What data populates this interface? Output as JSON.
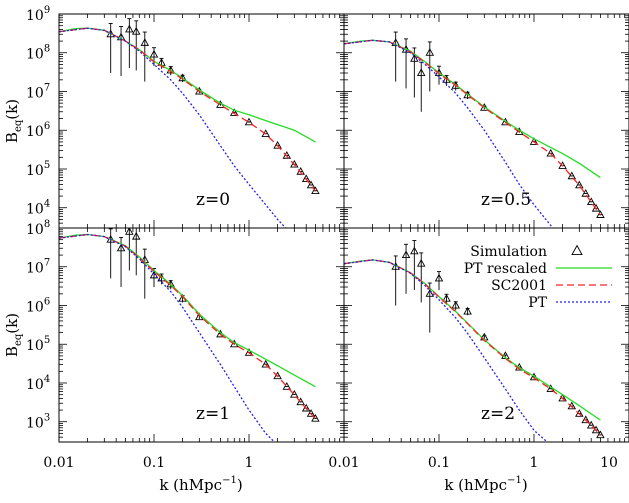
{
  "figure": {
    "xlabel_main": "k (hMpc",
    "xlabel_exp": "−1",
    "xlabel_close": ")",
    "ylabel_main": "B",
    "ylabel_sub": "eq",
    "ylabel_arg": "(k)",
    "x_tick_labels": [
      "0.01",
      "0.1",
      "1",
      "0.01",
      "0.1",
      "1",
      "10"
    ],
    "legend": [
      {
        "label": "Simulation",
        "marker": "triangle",
        "color": "#000000"
      },
      {
        "label": "PT rescaled",
        "style": "solid",
        "color": "#22dd22"
      },
      {
        "label": "SC2001",
        "style": "dashed",
        "color": "#ff2020"
      },
      {
        "label": "PT",
        "style": "dotted",
        "color": "#2222ee"
      }
    ]
  },
  "chart_data": [
    {
      "type": "scatter",
      "panel": "top-left",
      "annotation": "z=0",
      "xscale": "log",
      "yscale": "log",
      "xlim": [
        0.01,
        10
      ],
      "ylim": [
        3000,
        1000000000
      ],
      "y_tick_exponents": [
        4,
        5,
        6,
        7,
        8,
        9
      ],
      "series": [
        {
          "name": "Simulation",
          "kind": "points",
          "x": [
            0.035,
            0.045,
            0.055,
            0.065,
            0.08,
            0.1,
            0.12,
            0.15,
            0.2,
            0.3,
            0.5,
            0.7,
            1.0,
            1.5,
            2.0,
            2.5,
            3.0,
            3.5,
            4.0,
            4.5,
            5.0
          ],
          "y": [
            300000000,
            250000000,
            400000000,
            350000000,
            180000000,
            90000000,
            55000000,
            35000000,
            22000000,
            10000000,
            4500000,
            2800000,
            1600000,
            800000,
            400000,
            220000,
            130000,
            85000,
            55000,
            38000,
            27000
          ],
          "err": [
            0.9,
            0.9,
            0.9,
            0.9,
            0.9,
            0.5,
            0.3,
            0.25,
            0.2,
            0.1,
            0.05,
            0.04,
            0.03,
            0.02,
            0.02,
            0.02,
            0.02,
            0.02,
            0.02,
            0.02,
            0.02
          ]
        },
        {
          "name": "PT rescaled",
          "kind": "line",
          "x": [
            0.01,
            0.015,
            0.02,
            0.03,
            0.05,
            0.07,
            0.1,
            0.15,
            0.2,
            0.3,
            0.5,
            0.7,
            1.0,
            2.0,
            3.0,
            5.0
          ],
          "y": [
            350000000,
            420000000,
            430000000,
            380000000,
            200000000,
            120000000,
            60000000,
            35000000,
            22000000,
            11000000,
            5000000,
            3300000,
            2500000,
            1400000,
            1000000,
            500000
          ]
        },
        {
          "name": "SC2001",
          "kind": "line",
          "x": [
            0.01,
            0.02,
            0.03,
            0.05,
            0.07,
            0.1,
            0.15,
            0.2,
            0.3,
            0.5,
            0.7,
            1.0,
            1.5,
            2.0,
            3.0,
            4.0,
            5.0
          ],
          "y": [
            350000000,
            430000000,
            380000000,
            200000000,
            120000000,
            58000000,
            33000000,
            21000000,
            10000000,
            4500000,
            2700000,
            1600000,
            800000,
            400000,
            130000,
            55000,
            27000
          ]
        },
        {
          "name": "PT",
          "kind": "line",
          "x": [
            0.01,
            0.02,
            0.03,
            0.05,
            0.07,
            0.1,
            0.15,
            0.2,
            0.3,
            0.5,
            0.7,
            1.0,
            1.5,
            2.0,
            2.5
          ],
          "y": [
            350000000,
            430000000,
            380000000,
            200000000,
            110000000,
            50000000,
            20000000,
            9000000,
            2500000,
            400000,
            120000,
            40000,
            12000,
            5000,
            2800
          ]
        }
      ]
    },
    {
      "type": "scatter",
      "panel": "top-right",
      "annotation": "z=0.5",
      "xscale": "log",
      "yscale": "log",
      "xlim": [
        0.01,
        10
      ],
      "ylim": [
        3000,
        1000000000
      ],
      "y_tick_exponents": [
        4,
        5,
        6,
        7,
        8,
        9
      ],
      "series": [
        {
          "name": "Simulation",
          "kind": "points",
          "x": [
            0.035,
            0.045,
            0.055,
            0.065,
            0.08,
            0.1,
            0.12,
            0.15,
            0.2,
            0.3,
            0.5,
            0.7,
            1.0,
            1.5,
            2.0,
            2.5,
            3.0,
            3.5,
            4.0,
            4.5,
            5.0
          ],
          "y": [
            180000000,
            120000000,
            70000000,
            30000000,
            100000000,
            30000000,
            20000000,
            14000000,
            8000000,
            3800000,
            1600000,
            900000,
            500000,
            250000,
            120000,
            65000,
            38000,
            23000,
            14000,
            9500,
            6500
          ],
          "err": [
            0.9,
            0.9,
            0.9,
            0.9,
            0.9,
            0.5,
            0.3,
            0.25,
            0.2,
            0.1,
            0.05,
            0.04,
            0.03,
            0.02,
            0.02,
            0.02,
            0.02,
            0.02,
            0.02,
            0.02,
            0.02
          ]
        },
        {
          "name": "PT rescaled",
          "kind": "line",
          "x": [
            0.01,
            0.015,
            0.02,
            0.03,
            0.05,
            0.07,
            0.1,
            0.15,
            0.2,
            0.3,
            0.5,
            0.7,
            1.0,
            2.0,
            3.0,
            5.0
          ],
          "y": [
            170000000,
            200000000,
            210000000,
            190000000,
            110000000,
            60000000,
            30000000,
            15000000,
            8500000,
            4000000,
            1700000,
            1000000,
            600000,
            250000,
            140000,
            60000
          ]
        },
        {
          "name": "SC2001",
          "kind": "line",
          "x": [
            0.01,
            0.02,
            0.03,
            0.05,
            0.07,
            0.1,
            0.15,
            0.2,
            0.3,
            0.5,
            0.7,
            1.0,
            1.5,
            2.0,
            3.0,
            4.0,
            5.0
          ],
          "y": [
            170000000,
            210000000,
            190000000,
            105000000,
            58000000,
            29000000,
            14500000,
            8200000,
            3800000,
            1600000,
            900000,
            500000,
            250000,
            120000,
            38000,
            14000,
            6500
          ]
        },
        {
          "name": "PT",
          "kind": "line",
          "x": [
            0.01,
            0.02,
            0.03,
            0.05,
            0.07,
            0.1,
            0.15,
            0.2,
            0.3,
            0.5,
            0.7,
            1.0,
            1.5,
            2.0
          ],
          "y": [
            170000000,
            210000000,
            190000000,
            100000000,
            52000000,
            24000000,
            9000000,
            3800000,
            1000000,
            150000,
            40000,
            12000,
            3500,
            1500
          ]
        }
      ]
    },
    {
      "type": "scatter",
      "panel": "bottom-left",
      "annotation": "z=1",
      "xscale": "log",
      "yscale": "log",
      "xlim": [
        0.01,
        10
      ],
      "ylim": [
        300,
        100000000
      ],
      "y_tick_exponents": [
        3,
        4,
        5,
        6,
        7,
        8
      ],
      "series": [
        {
          "name": "Simulation",
          "kind": "points",
          "x": [
            0.035,
            0.045,
            0.055,
            0.065,
            0.08,
            0.1,
            0.12,
            0.15,
            0.2,
            0.3,
            0.5,
            0.7,
            1.0,
            1.5,
            2.0,
            2.5,
            3.0,
            3.5,
            4.0,
            4.5,
            5.0
          ],
          "y": [
            50000000,
            30000000,
            80000000,
            60000000,
            15000000,
            6000000,
            5000000,
            3500000,
            1500000,
            500000,
            180000,
            100000,
            60000,
            30000,
            15000,
            8000,
            5000,
            3200,
            2200,
            1600,
            1200
          ],
          "err": [
            0.9,
            0.9,
            0.9,
            0.9,
            0.9,
            0.5,
            0.3,
            0.25,
            0.2,
            0.1,
            0.05,
            0.04,
            0.03,
            0.02,
            0.02,
            0.02,
            0.02,
            0.02,
            0.02,
            0.02,
            0.02
          ]
        },
        {
          "name": "PT rescaled",
          "kind": "line",
          "x": [
            0.01,
            0.015,
            0.02,
            0.03,
            0.05,
            0.07,
            0.1,
            0.15,
            0.2,
            0.3,
            0.5,
            0.7,
            1.0,
            2.0,
            3.0,
            5.0
          ],
          "y": [
            55000000,
            65000000,
            68000000,
            60000000,
            35000000,
            18000000,
            8000000,
            3500000,
            1800000,
            600000,
            200000,
            110000,
            70000,
            28000,
            16000,
            8000
          ]
        },
        {
          "name": "SC2001",
          "kind": "line",
          "x": [
            0.01,
            0.02,
            0.03,
            0.05,
            0.07,
            0.1,
            0.15,
            0.2,
            0.3,
            0.5,
            0.7,
            1.0,
            1.5,
            2.0,
            3.0,
            4.0,
            5.0
          ],
          "y": [
            55000000,
            68000000,
            60000000,
            34000000,
            17000000,
            7600000,
            3300000,
            1700000,
            550000,
            180000,
            100000,
            60000,
            30000,
            15000,
            5000,
            2200,
            1200
          ]
        },
        {
          "name": "PT",
          "kind": "line",
          "x": [
            0.01,
            0.02,
            0.03,
            0.05,
            0.07,
            0.1,
            0.15,
            0.2,
            0.3,
            0.5,
            0.7,
            1.0,
            1.5,
            2.0
          ],
          "y": [
            55000000,
            68000000,
            60000000,
            33000000,
            16000000,
            6500000,
            2300000,
            900000,
            200000,
            30000,
            8000,
            2000,
            500,
            250
          ]
        }
      ]
    },
    {
      "type": "scatter",
      "panel": "bottom-right",
      "annotation": "z=2",
      "xscale": "log",
      "yscale": "log",
      "xlim": [
        0.01,
        10
      ],
      "ylim": [
        300,
        100000000
      ],
      "y_tick_exponents": [
        3,
        4,
        5,
        6,
        7,
        8
      ],
      "series": [
        {
          "name": "Simulation",
          "kind": "points",
          "x": [
            0.035,
            0.045,
            0.055,
            0.065,
            0.08,
            0.1,
            0.12,
            0.15,
            0.2,
            0.3,
            0.5,
            0.7,
            1.0,
            1.5,
            2.0,
            2.5,
            3.0,
            3.5,
            4.0,
            4.5,
            5.0
          ],
          "y": [
            10000000,
            20000000,
            25000000,
            12000000,
            2000000,
            5000000,
            1500000,
            1000000,
            700000,
            150000,
            50000,
            25000,
            14000,
            7000,
            4000,
            2500,
            1600,
            1100,
            800,
            600,
            450
          ],
          "err": [
            0.9,
            0.9,
            0.9,
            0.9,
            0.9,
            0.5,
            0.3,
            0.25,
            0.2,
            0.1,
            0.05,
            0.04,
            0.03,
            0.02,
            0.02,
            0.02,
            0.02,
            0.02,
            0.02,
            0.02,
            0.02
          ]
        },
        {
          "name": "PT rescaled",
          "kind": "line",
          "x": [
            0.01,
            0.015,
            0.02,
            0.03,
            0.05,
            0.07,
            0.1,
            0.15,
            0.2,
            0.3,
            0.5,
            0.7,
            1.0,
            2.0,
            3.0,
            5.0
          ],
          "y": [
            12000000,
            14000000,
            15000000,
            13000000,
            7000000,
            3800000,
            1700000,
            700000,
            350000,
            130000,
            45000,
            25000,
            15000,
            5000,
            2600,
            1100
          ]
        },
        {
          "name": "SC2001",
          "kind": "line",
          "x": [
            0.01,
            0.02,
            0.03,
            0.05,
            0.07,
            0.1,
            0.15,
            0.2,
            0.3,
            0.5,
            0.7,
            1.0,
            1.5,
            2.0,
            3.0,
            4.0,
            5.0
          ],
          "y": [
            12000000,
            15000000,
            13000000,
            7000000,
            3700000,
            1650000,
            680000,
            340000,
            125000,
            43000,
            23000,
            13500,
            7000,
            4000,
            1600,
            800,
            450
          ]
        },
        {
          "name": "PT",
          "kind": "line",
          "x": [
            0.01,
            0.02,
            0.03,
            0.05,
            0.07,
            0.1,
            0.15,
            0.2,
            0.3,
            0.5,
            0.7,
            1.0,
            1.5
          ],
          "y": [
            12000000,
            15000000,
            13000000,
            6800000,
            3400000,
            1400000,
            480000,
            190000,
            45000,
            7000,
            2000,
            600,
            250
          ]
        }
      ]
    }
  ]
}
